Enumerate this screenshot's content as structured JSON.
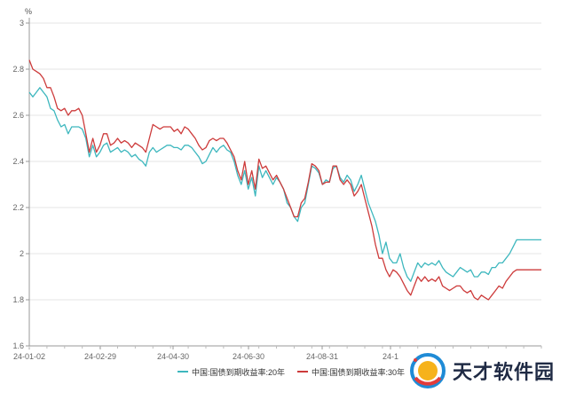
{
  "chart_data": {
    "type": "line",
    "title": "",
    "xlabel": "",
    "ylabel": "%",
    "ylim": [
      1.6,
      3.0
    ],
    "yticks": [
      "1.6",
      "1.8",
      "2",
      "2.2",
      "2.4",
      "2.6",
      "2.8",
      "3"
    ],
    "xticks": [
      "24-01-02",
      "24-02-29",
      "24-04-30",
      "24-06-30",
      "24-08-31",
      "24-1"
    ],
    "grid": "horizontal",
    "legend_position": "bottom",
    "series": [
      {
        "name": "中国:国债到期收益率:20年",
        "color": "#3db7be",
        "x": [
          0,
          2,
          4,
          6,
          8,
          10,
          12,
          14,
          16,
          18,
          20,
          22,
          24,
          26,
          28,
          30,
          32,
          34,
          36,
          38,
          40,
          42,
          44,
          46,
          48,
          50,
          52,
          54,
          56,
          58,
          60,
          62,
          64,
          66,
          68,
          70,
          72,
          74,
          76,
          78,
          80,
          82,
          84,
          86,
          88,
          90,
          92,
          94,
          96,
          98,
          100,
          102,
          104,
          106,
          108,
          110,
          112,
          114,
          116,
          118,
          120,
          122,
          124,
          126,
          128,
          130,
          132,
          134,
          136,
          138,
          140,
          142,
          144,
          146,
          148,
          150,
          152,
          154,
          156,
          158,
          160,
          162,
          164,
          166,
          168,
          170,
          172,
          174,
          176,
          178,
          180,
          182,
          184,
          186,
          188,
          190,
          192,
          194,
          196,
          198,
          200,
          202,
          204,
          206,
          208,
          210,
          212,
          214,
          216,
          218,
          220,
          222,
          224,
          226,
          228,
          230,
          232,
          234,
          236,
          238,
          240,
          242,
          244,
          246,
          248,
          250,
          252,
          254,
          256,
          258,
          260,
          262,
          264,
          266,
          268,
          270,
          272,
          274,
          276,
          278,
          280,
          282,
          284,
          286,
          288,
          290
        ],
        "values": [
          2.7,
          2.68,
          2.7,
          2.72,
          2.7,
          2.68,
          2.63,
          2.62,
          2.58,
          2.55,
          2.56,
          2.52,
          2.55,
          2.55,
          2.55,
          2.54,
          2.5,
          2.42,
          2.47,
          2.42,
          2.44,
          2.47,
          2.48,
          2.44,
          2.45,
          2.46,
          2.44,
          2.45,
          2.44,
          2.42,
          2.43,
          2.41,
          2.4,
          2.38,
          2.44,
          2.46,
          2.44,
          2.45,
          2.46,
          2.47,
          2.47,
          2.46,
          2.46,
          2.45,
          2.47,
          2.47,
          2.46,
          2.44,
          2.42,
          2.39,
          2.4,
          2.43,
          2.46,
          2.44,
          2.46,
          2.47,
          2.45,
          2.44,
          2.4,
          2.34,
          2.3,
          2.36,
          2.28,
          2.33,
          2.25,
          2.38,
          2.33,
          2.36,
          2.33,
          2.3,
          2.33,
          2.31,
          2.28,
          2.22,
          2.2,
          2.16,
          2.14,
          2.2,
          2.22,
          2.3,
          2.38,
          2.37,
          2.35,
          2.3,
          2.32,
          2.31,
          2.37,
          2.38,
          2.33,
          2.31,
          2.34,
          2.32,
          2.27,
          2.3,
          2.34,
          2.28,
          2.22,
          2.18,
          2.14,
          2.08,
          2.0,
          2.05,
          1.98,
          1.96,
          1.96,
          2.0,
          1.94,
          1.9,
          1.88,
          1.92,
          1.96,
          1.94,
          1.96,
          1.95,
          1.96,
          1.95,
          1.97,
          1.94,
          1.92,
          1.91,
          1.9,
          1.92,
          1.94,
          1.93,
          1.92,
          1.93,
          1.9,
          1.9,
          1.92,
          1.92,
          1.91,
          1.94,
          1.94,
          1.96,
          1.96,
          1.98,
          2.0,
          2.03,
          2.06,
          2.06,
          2.06,
          2.06,
          2.06,
          2.06,
          2.06,
          2.06
        ]
      },
      {
        "name": "中国:国债到期收益率:30年",
        "color": "#cd3b3b",
        "x": [
          0,
          2,
          4,
          6,
          8,
          10,
          12,
          14,
          16,
          18,
          20,
          22,
          24,
          26,
          28,
          30,
          32,
          34,
          36,
          38,
          40,
          42,
          44,
          46,
          48,
          50,
          52,
          54,
          56,
          58,
          60,
          62,
          64,
          66,
          68,
          70,
          72,
          74,
          76,
          78,
          80,
          82,
          84,
          86,
          88,
          90,
          92,
          94,
          96,
          98,
          100,
          102,
          104,
          106,
          108,
          110,
          112,
          114,
          116,
          118,
          120,
          122,
          124,
          126,
          128,
          130,
          132,
          134,
          136,
          138,
          140,
          142,
          144,
          146,
          148,
          150,
          152,
          154,
          156,
          158,
          160,
          162,
          164,
          166,
          168,
          170,
          172,
          174,
          176,
          178,
          180,
          182,
          184,
          186,
          188,
          190,
          192,
          194,
          196,
          198,
          200,
          202,
          204,
          206,
          208,
          210,
          212,
          214,
          216,
          218,
          220,
          222,
          224,
          226,
          228,
          230,
          232,
          234,
          236,
          238,
          240,
          242,
          244,
          246,
          248,
          250,
          252,
          254,
          256,
          258,
          260,
          262,
          264,
          266,
          268,
          270,
          272,
          274,
          276,
          278,
          280,
          282,
          284,
          286,
          288,
          290
        ],
        "values": [
          2.84,
          2.8,
          2.79,
          2.78,
          2.76,
          2.72,
          2.72,
          2.68,
          2.63,
          2.62,
          2.63,
          2.6,
          2.62,
          2.62,
          2.63,
          2.6,
          2.52,
          2.44,
          2.5,
          2.44,
          2.47,
          2.52,
          2.52,
          2.47,
          2.48,
          2.5,
          2.48,
          2.49,
          2.48,
          2.46,
          2.48,
          2.47,
          2.46,
          2.44,
          2.5,
          2.56,
          2.55,
          2.54,
          2.55,
          2.55,
          2.55,
          2.53,
          2.54,
          2.52,
          2.55,
          2.54,
          2.52,
          2.5,
          2.47,
          2.45,
          2.46,
          2.49,
          2.5,
          2.49,
          2.5,
          2.5,
          2.48,
          2.45,
          2.42,
          2.36,
          2.32,
          2.4,
          2.3,
          2.36,
          2.28,
          2.41,
          2.37,
          2.38,
          2.35,
          2.32,
          2.34,
          2.31,
          2.28,
          2.24,
          2.2,
          2.16,
          2.16,
          2.22,
          2.24,
          2.31,
          2.39,
          2.38,
          2.36,
          2.3,
          2.31,
          2.31,
          2.38,
          2.38,
          2.32,
          2.3,
          2.32,
          2.3,
          2.25,
          2.27,
          2.3,
          2.24,
          2.18,
          2.12,
          2.04,
          1.98,
          1.98,
          1.93,
          1.9,
          1.93,
          1.92,
          1.9,
          1.87,
          1.84,
          1.82,
          1.86,
          1.9,
          1.88,
          1.9,
          1.88,
          1.89,
          1.88,
          1.9,
          1.86,
          1.85,
          1.84,
          1.85,
          1.86,
          1.86,
          1.84,
          1.83,
          1.84,
          1.81,
          1.8,
          1.82,
          1.81,
          1.8,
          1.82,
          1.84,
          1.86,
          1.85,
          1.88,
          1.9,
          1.92,
          1.93,
          1.93,
          1.93,
          1.93,
          1.93,
          1.93,
          1.93,
          1.93
        ]
      }
    ]
  },
  "watermark": {
    "text": "天才软件园"
  }
}
